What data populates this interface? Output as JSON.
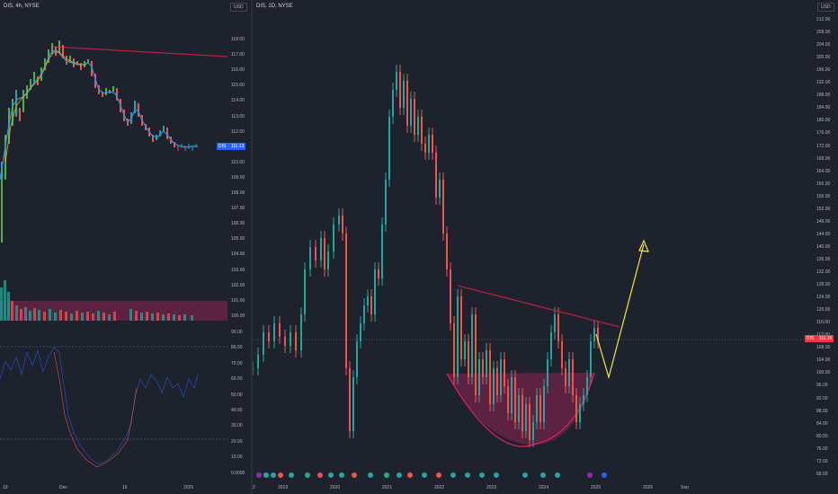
{
  "left_panel": {
    "title": "DIS, 4h, NYSE",
    "currency": "USD",
    "price_label": "DIS",
    "price_value": "111.13",
    "price_color": "#2962ff",
    "y_ticks": [
      "118.00",
      "117.00",
      "116.00",
      "115.00",
      "114.00",
      "113.00",
      "112.00",
      "111.00",
      "110.00",
      "109.00",
      "108.00",
      "107.00",
      "106.00",
      "105.00",
      "104.00",
      "103.00",
      "102.00",
      "101.00",
      "100.00"
    ],
    "osc_ticks": [
      "90.00",
      "80.00",
      "70.00",
      "60.00",
      "50.00",
      "40.00",
      "30.00",
      "20.00",
      "10.00",
      "0.0000"
    ],
    "x_ticks": [
      "19",
      "Dec",
      "16",
      "2025"
    ]
  },
  "right_panel": {
    "title": "DIS, 1D, NYSE",
    "currency": "USD",
    "price_label": "DIS",
    "price_value": "111.16",
    "price_color": "#f23645",
    "y_ticks": [
      "212.00",
      "208.00",
      "204.00",
      "200.00",
      "196.00",
      "192.00",
      "188.00",
      "184.00",
      "180.00",
      "176.00",
      "172.00",
      "168.00",
      "164.00",
      "160.00",
      "156.00",
      "152.00",
      "148.00",
      "144.00",
      "140.00",
      "136.00",
      "132.00",
      "128.00",
      "124.00",
      "120.00",
      "116.00",
      "112.00",
      "108.00",
      "104.00",
      "100.00",
      "96.00",
      "92.00",
      "88.00",
      "84.00",
      "80.00",
      "76.00",
      "72.00",
      "68.00"
    ],
    "x_ticks": [
      "2",
      "2019",
      "2020",
      "2021",
      "2022",
      "2023",
      "2024",
      "2025",
      "2026",
      "Sep"
    ]
  },
  "colors": {
    "background": "#1e222d",
    "up": "#26a69a",
    "down": "#ef5350",
    "trendline": "#b2223c",
    "projection": "#f5e642",
    "cup_fill": "#8e2450",
    "cup_line": "#e91e63",
    "ma_blue": "#2196f3",
    "ma_orange": "#ff9800",
    "bull_green": "#4caf50"
  }
}
